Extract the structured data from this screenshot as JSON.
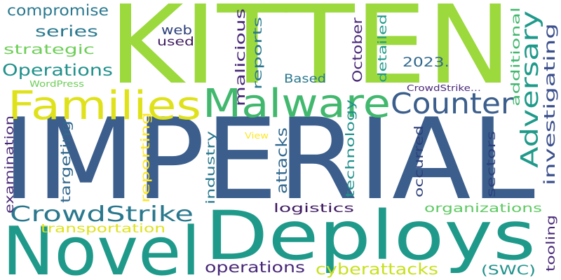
{
  "cloud": {
    "background": "#ffffff",
    "words": [
      {
        "text": "IMPERIAL",
        "color": "#3b5e8c",
        "vertical": false
      },
      {
        "text": "KITTEN",
        "color": "#9bd93c",
        "vertical": false
      },
      {
        "text": "Deploys",
        "color": "#1f9a8a",
        "vertical": false
      },
      {
        "text": "Novel",
        "color": "#1f9a8a",
        "vertical": false
      },
      {
        "text": "Malware",
        "color": "#41b86e",
        "vertical": false
      },
      {
        "text": "Families",
        "color": "#dfe21a",
        "vertical": false
      },
      {
        "text": "Counter",
        "color": "#3b5e8c",
        "vertical": false
      },
      {
        "text": "Adversary",
        "color": "#1f9a8a",
        "vertical": true
      },
      {
        "text": "CrowdStrike",
        "color": "#2a788e",
        "vertical": false
      },
      {
        "text": "Operations",
        "color": "#21918c",
        "vertical": false
      },
      {
        "text": "investigating",
        "color": "#3b4f8c",
        "vertical": true
      },
      {
        "text": "cyberattacks",
        "color": "#c8e020",
        "vertical": false
      },
      {
        "text": "operations",
        "color": "#482878",
        "vertical": false
      },
      {
        "text": "compromise",
        "color": "#2a788e",
        "vertical": false
      },
      {
        "text": "series",
        "color": "#2a788e",
        "vertical": false
      },
      {
        "text": "strategic",
        "color": "#6ece58",
        "vertical": false
      },
      {
        "text": "web",
        "color": "#2c3f7a",
        "vertical": false
      },
      {
        "text": "used",
        "color": "#3e1a60",
        "vertical": false
      },
      {
        "text": "malicious",
        "color": "#482878",
        "vertical": true
      },
      {
        "text": "reports",
        "color": "#2a788e",
        "vertical": true
      },
      {
        "text": "October",
        "color": "#482878",
        "vertical": true
      },
      {
        "text": "detailed",
        "color": "#1f9a8a",
        "vertical": true
      },
      {
        "text": "additional",
        "color": "#41b86e",
        "vertical": true
      },
      {
        "text": "2023.",
        "color": "#31688e",
        "vertical": false
      },
      {
        "text": "Based",
        "color": "#2a788e",
        "vertical": false
      },
      {
        "text": "WordPress",
        "color": "#6ece58",
        "vertical": false
      },
      {
        "text": "CrowdStrike…",
        "color": "#482878",
        "vertical": false
      },
      {
        "text": "examination",
        "color": "#482878",
        "vertical": true
      },
      {
        "text": "targeting",
        "color": "#31688e",
        "vertical": true
      },
      {
        "text": "reporting",
        "color": "#fde725",
        "vertical": true
      },
      {
        "text": "industry",
        "color": "#2a788e",
        "vertical": true
      },
      {
        "text": "attacks",
        "color": "#31688e",
        "vertical": true
      },
      {
        "text": "technology",
        "color": "#21918c",
        "vertical": true
      },
      {
        "text": "View",
        "color": "#fde725",
        "vertical": false
      },
      {
        "text": "occurred",
        "color": "#2c3f7a",
        "vertical": true
      },
      {
        "text": "sectors",
        "color": "#2c3f7a",
        "vertical": true
      },
      {
        "text": "logistics",
        "color": "#3e1a60",
        "vertical": false
      },
      {
        "text": "organizations",
        "color": "#5ec962",
        "vertical": false
      },
      {
        "text": "transportation",
        "color": "#dfe21a",
        "vertical": false
      },
      {
        "text": "tooling",
        "color": "#482878",
        "vertical": true
      },
      {
        "text": "(SWC)",
        "color": "#21918c",
        "vertical": false
      }
    ]
  }
}
